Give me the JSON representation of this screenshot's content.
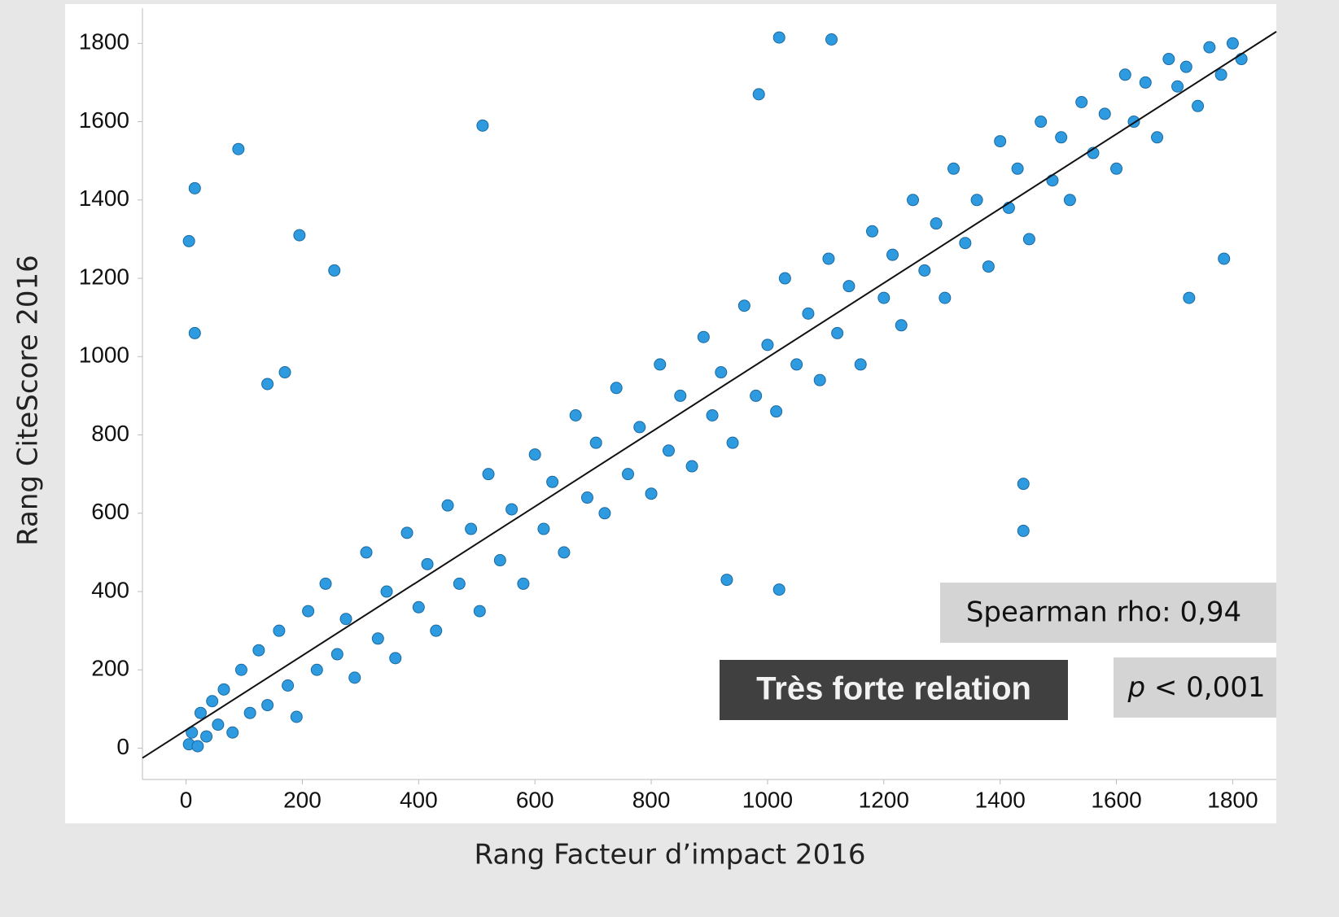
{
  "chart_data": {
    "type": "scatter",
    "x_label": "Rang Facteur d’impact 2016",
    "y_label": "Rang CiteScore 2016",
    "xlim": [
      -75,
      1875
    ],
    "ylim": [
      -80,
      1890
    ],
    "xticks": [
      0,
      200,
      400,
      600,
      800,
      1000,
      1200,
      1400,
      1600,
      1800
    ],
    "yticks": [
      0,
      200,
      400,
      600,
      800,
      1000,
      1200,
      1400,
      1600,
      1800
    ],
    "color": "#2e9be0",
    "fit_line": {
      "x": [
        -75,
        1875
      ],
      "y": [
        -25,
        1830
      ],
      "color": "#111111"
    },
    "x": [
      5,
      10,
      20,
      25,
      35,
      45,
      55,
      65,
      80,
      95,
      110,
      125,
      140,
      160,
      175,
      190,
      210,
      225,
      240,
      260,
      275,
      290,
      310,
      330,
      345,
      360,
      380,
      400,
      415,
      430,
      450,
      470,
      490,
      505,
      520,
      540,
      560,
      580,
      600,
      615,
      630,
      650,
      670,
      690,
      705,
      720,
      740,
      760,
      780,
      800,
      815,
      830,
      850,
      870,
      890,
      905,
      920,
      940,
      960,
      980,
      1000,
      1015,
      1030,
      1050,
      1070,
      1090,
      1105,
      1120,
      1140,
      1160,
      1180,
      1200,
      1215,
      1230,
      1250,
      1270,
      1290,
      1305,
      1320,
      1340,
      1360,
      1380,
      1400,
      1415,
      1430,
      1450,
      1470,
      1490,
      1505,
      1520,
      1540,
      1560,
      1580,
      1600,
      1615,
      1630,
      1650,
      1670,
      1690,
      1705,
      1720,
      1740,
      1760,
      1780,
      1800,
      1815,
      5,
      15,
      15,
      90,
      195,
      255,
      510,
      1020,
      1110,
      985,
      140,
      170,
      1440,
      1440,
      1725,
      1785,
      930,
      1020
    ],
    "y": [
      10,
      40,
      5,
      90,
      30,
      120,
      60,
      150,
      40,
      200,
      90,
      250,
      110,
      300,
      160,
      80,
      350,
      200,
      420,
      240,
      330,
      180,
      500,
      280,
      400,
      230,
      550,
      360,
      470,
      300,
      620,
      420,
      560,
      350,
      700,
      480,
      610,
      420,
      750,
      560,
      680,
      500,
      850,
      640,
      780,
      600,
      920,
      700,
      820,
      650,
      980,
      760,
      900,
      720,
      1050,
      850,
      960,
      780,
      1130,
      900,
      1030,
      860,
      1200,
      980,
      1110,
      940,
      1250,
      1060,
      1180,
      980,
      1320,
      1150,
      1260,
      1080,
      1400,
      1220,
      1340,
      1150,
      1480,
      1290,
      1400,
      1230,
      1550,
      1380,
      1480,
      1300,
      1600,
      1450,
      1560,
      1400,
      1650,
      1520,
      1620,
      1480,
      1720,
      1600,
      1700,
      1560,
      1760,
      1690,
      1740,
      1640,
      1790,
      1720,
      1800,
      1760,
      1295,
      1430,
      1060,
      1530,
      1310,
      1220,
      1590,
      1815,
      1810,
      1670,
      930,
      960,
      555,
      675,
      1150,
      1250,
      430,
      405
    ],
    "annotations": {
      "rho": "Spearman rho: 0,94",
      "p_symbol": "p",
      "p_value": "< 0,001",
      "relation": "Très forte relation"
    }
  }
}
